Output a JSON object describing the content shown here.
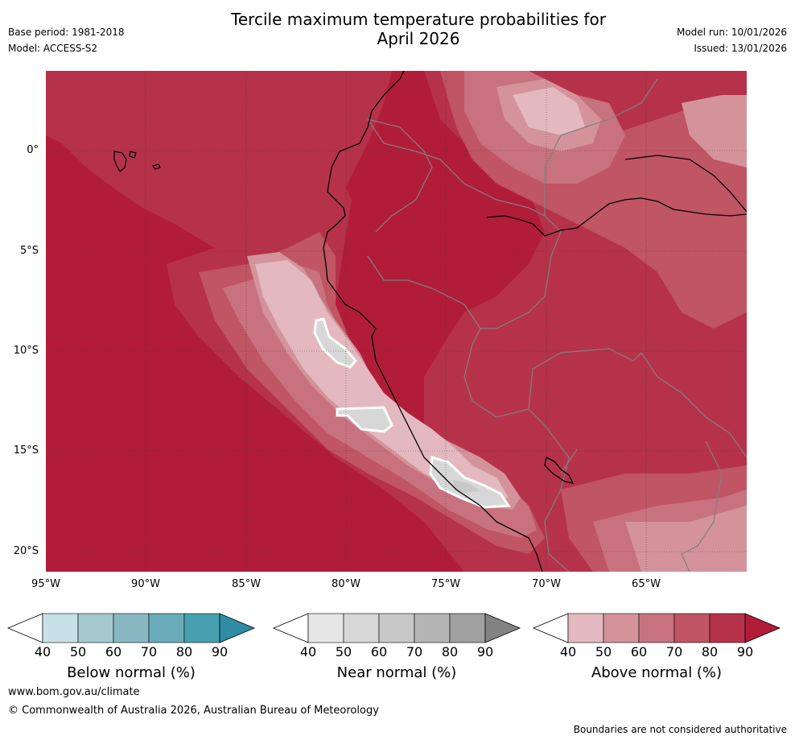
{
  "title_line1": "Tercile maximum temperature probabilities for",
  "title_line2": "April 2026",
  "base_period": "Base period: 1981-2018",
  "model": "Model: ACCESS-S2",
  "model_run": "Model run: 10/01/2026",
  "issued": "Issued: 13/01/2026",
  "lat_labels": [
    "0°",
    "5°S",
    "10°S",
    "15°S",
    "20°S"
  ],
  "lon_labels": [
    "95°W",
    "90°W",
    "85°W",
    "80°W",
    "75°W",
    "70°W",
    "65°W"
  ],
  "colorbars": [
    {
      "label": "Below normal (%)",
      "ticks": [
        "40",
        "50",
        "60",
        "70",
        "80",
        "90"
      ],
      "colors": [
        "#c8e1e6",
        "#a6c8cf",
        "#89b8c3",
        "#6aacb9",
        "#46a0b0"
      ],
      "arrow": "#2e8da3"
    },
    {
      "label": "Near normal (%)",
      "ticks": [
        "40",
        "50",
        "60",
        "70",
        "80",
        "90"
      ],
      "colors": [
        "#e6e6e6",
        "#d7d7d7",
        "#c8c8c8",
        "#b4b4b4",
        "#a0a0a0"
      ],
      "arrow": "#828282"
    },
    {
      "label": "Above normal (%)",
      "ticks": [
        "40",
        "50",
        "60",
        "70",
        "80",
        "90"
      ],
      "colors": [
        "#e3b9bf",
        "#d4939b",
        "#c9727f",
        "#c05564",
        "#b6324b"
      ],
      "arrow": "#b11d39"
    }
  ],
  "legend_colors": {
    "above_90": "#b11d39",
    "above_80": "#b6324b",
    "above_70": "#c05564",
    "above_60": "#c9727f",
    "above_50": "#d4939b",
    "above_40": "#e3b9bf",
    "near_40": "#e6e6e6",
    "near_50": "#d7d7d7"
  },
  "footer_url": "www.bom.gov.au/climate",
  "footer_copyright": "© Commonwealth of Australia 2026, Australian Bureau of Meteorology",
  "footer_disclaimer": "Boundaries are not considered authoritative"
}
